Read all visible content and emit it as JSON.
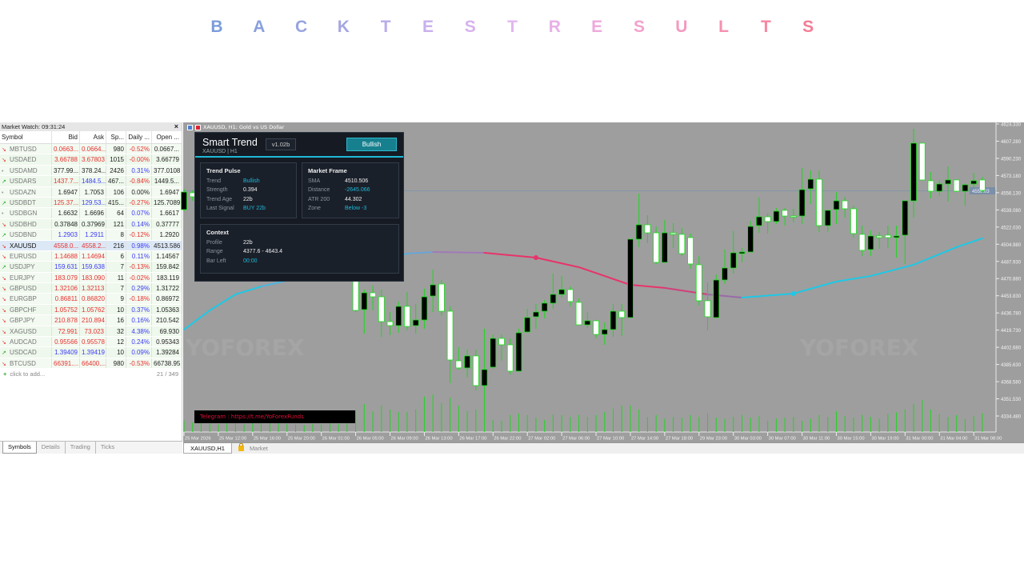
{
  "banner": {
    "letters": [
      "B",
      "A",
      "C",
      "K",
      "T",
      "E",
      "S",
      "T",
      "R",
      "E",
      "S",
      "U",
      "L",
      "T",
      "S"
    ],
    "colors": [
      "#7b9cda",
      "#8aa0dc",
      "#98a4e0",
      "#a6a6e2",
      "#b8acea",
      "#c8b0ec",
      "#d6b2ee",
      "#e2b6f0",
      "#e6b0e6",
      "#eeaadc",
      "#f2a2cc",
      "#f49ac0",
      "#f690b0",
      "#f686a2",
      "#f47c94"
    ]
  },
  "market_watch": {
    "title": "Market Watch: 09:31:24",
    "close": "×",
    "columns": [
      "Symbol",
      "Bid",
      "Ask",
      "Sp...",
      "Daily ...",
      "Open ..."
    ],
    "rows": [
      {
        "dir": "down",
        "symbol": "MBTUSD",
        "bid": "0.0663...",
        "ask": "0.0664...",
        "spread": "980",
        "daily": "-0.52%",
        "open": "0.0667...",
        "bid_c": "down",
        "ask_c": "down",
        "daily_c": "down"
      },
      {
        "dir": "down",
        "symbol": "USDAED",
        "bid": "3.66788",
        "ask": "3.67803",
        "spread": "1015",
        "daily": "-0.00%",
        "open": "3.66779",
        "bid_c": "down",
        "ask_c": "down",
        "daily_c": "down"
      },
      {
        "dir": "flat",
        "symbol": "USDAMD",
        "bid": "377.99...",
        "ask": "378.24...",
        "spread": "2426",
        "daily": "0.31%",
        "open": "377.0108",
        "bid_c": "flat",
        "ask_c": "flat",
        "daily_c": "up"
      },
      {
        "dir": "up",
        "symbol": "USDARS",
        "bid": "1437.7...",
        "ask": "1484.5...",
        "spread": "467...",
        "daily": "-0.84%",
        "open": "1449.5...",
        "bid_c": "down",
        "ask_c": "up",
        "daily_c": "down"
      },
      {
        "dir": "flat",
        "symbol": "USDAZN",
        "bid": "1.6947",
        "ask": "1.7053",
        "spread": "106",
        "daily": "0.00%",
        "open": "1.6947",
        "bid_c": "flat",
        "ask_c": "flat",
        "daily_c": "flat"
      },
      {
        "dir": "up",
        "symbol": "USDBDT",
        "bid": "125.37...",
        "ask": "129.53...",
        "spread": "415...",
        "daily": "-0.27%",
        "open": "125.7089",
        "bid_c": "down",
        "ask_c": "up",
        "daily_c": "down"
      },
      {
        "dir": "flat",
        "symbol": "USDBGN",
        "bid": "1.6632",
        "ask": "1.6696",
        "spread": "64",
        "daily": "0.07%",
        "open": "1.6617",
        "bid_c": "flat",
        "ask_c": "flat",
        "daily_c": "up"
      },
      {
        "dir": "down",
        "symbol": "USDBHD",
        "bid": "0.37848",
        "ask": "0.37969",
        "spread": "121",
        "daily": "0.14%",
        "open": "0.37777",
        "bid_c": "flat",
        "ask_c": "flat",
        "daily_c": "up"
      },
      {
        "dir": "up",
        "symbol": "USDBND",
        "bid": "1.2903",
        "ask": "1.2911",
        "spread": "8",
        "daily": "-0.12%",
        "open": "1.2920",
        "bid_c": "up",
        "ask_c": "up",
        "daily_c": "down"
      },
      {
        "dir": "down",
        "symbol": "XAUUSD",
        "bid": "4558.0...",
        "ask": "4558.2...",
        "spread": "216",
        "daily": "0.98%",
        "open": "4513.586",
        "bid_c": "down",
        "ask_c": "down",
        "daily_c": "up",
        "selected": true
      },
      {
        "dir": "down",
        "symbol": "EURUSD",
        "bid": "1.14688",
        "ask": "1.14694",
        "spread": "6",
        "daily": "0.11%",
        "open": "1.14567",
        "bid_c": "down",
        "ask_c": "down",
        "daily_c": "up"
      },
      {
        "dir": "up",
        "symbol": "USDJPY",
        "bid": "159.631",
        "ask": "159.638",
        "spread": "7",
        "daily": "-0.13%",
        "open": "159.842",
        "bid_c": "up",
        "ask_c": "up",
        "daily_c": "down"
      },
      {
        "dir": "down",
        "symbol": "EURJPY",
        "bid": "183.079",
        "ask": "183.090",
        "spread": "11",
        "daily": "-0.02%",
        "open": "183.119",
        "bid_c": "down",
        "ask_c": "down",
        "daily_c": "down"
      },
      {
        "dir": "down",
        "symbol": "GBPUSD",
        "bid": "1.32106",
        "ask": "1.32113",
        "spread": "7",
        "daily": "0.29%",
        "open": "1.31722",
        "bid_c": "down",
        "ask_c": "down",
        "daily_c": "up"
      },
      {
        "dir": "down",
        "symbol": "EURGBP",
        "bid": "0.86811",
        "ask": "0.86820",
        "spread": "9",
        "daily": "-0.18%",
        "open": "0.86972",
        "bid_c": "down",
        "ask_c": "down",
        "daily_c": "down"
      },
      {
        "dir": "down",
        "symbol": "GBPCHF",
        "bid": "1.05752",
        "ask": "1.05762",
        "spread": "10",
        "daily": "0.37%",
        "open": "1.05363",
        "bid_c": "down",
        "ask_c": "down",
        "daily_c": "up"
      },
      {
        "dir": "down",
        "symbol": "GBPJPY",
        "bid": "210.878",
        "ask": "210.894",
        "spread": "16",
        "daily": "0.16%",
        "open": "210.542",
        "bid_c": "down",
        "ask_c": "down",
        "daily_c": "up"
      },
      {
        "dir": "down",
        "symbol": "XAGUSD",
        "bid": "72.991",
        "ask": "73.023",
        "spread": "32",
        "daily": "4.38%",
        "open": "69.930",
        "bid_c": "down",
        "ask_c": "down",
        "daily_c": "up"
      },
      {
        "dir": "down",
        "symbol": "AUDCAD",
        "bid": "0.95566",
        "ask": "0.95578",
        "spread": "12",
        "daily": "0.24%",
        "open": "0.95343",
        "bid_c": "down",
        "ask_c": "down",
        "daily_c": "up"
      },
      {
        "dir": "up",
        "symbol": "USDCAD",
        "bid": "1.39409",
        "ask": "1.39419",
        "spread": "10",
        "daily": "0.09%",
        "open": "1.39284",
        "bid_c": "up",
        "ask_c": "up",
        "daily_c": "up"
      },
      {
        "dir": "down",
        "symbol": "BTCUSD",
        "bid": "66391....",
        "ask": "66400....",
        "spread": "980",
        "daily": "-0.53%",
        "open": "66738.95",
        "bid_c": "down",
        "ask_c": "down",
        "daily_c": "down"
      }
    ],
    "add_label": "click to add...",
    "count": "21 / 349",
    "tabs": [
      "Symbols",
      "Details",
      "Trading",
      "Ticks"
    ]
  },
  "chart": {
    "title": "XAUUSD, H1:  Gold vs US Dollar",
    "watermark": "YOFOREX",
    "colors": {
      "bg": "#9e9e9e",
      "wick": "#22d422",
      "bull_body": "#000000",
      "bear_body": "#ffffff",
      "volume": "#22d422",
      "sma_bull": "#1ec8e6",
      "sma_bear": "#e8336a"
    },
    "price_ticks": [
      "4624.330",
      "4607.280",
      "4590.230",
      "4573.180",
      "4556.130",
      "4539.080",
      "4522.030",
      "4504.980",
      "4487.930",
      "4470.880",
      "4453.830",
      "4436.780",
      "4419.730",
      "4402.680",
      "4385.630",
      "4368.580",
      "4351.530",
      "4334.480"
    ],
    "price_range": [
      4334.48,
      4624.33
    ],
    "current_price": "4558.03",
    "time_labels": [
      "25 Mar 2026",
      "25 Mar 12:00",
      "25 Mar 16:00",
      "25 Mar 20:00",
      "26 Mar 01:00",
      "26 Mar 05:00",
      "26 Mar 09:00",
      "26 Mar 13:00",
      "26 Mar 17:00",
      "26 Mar 22:00",
      "27 Mar 02:00",
      "27 Mar 06:00",
      "27 Mar 10:00",
      "27 Mar 14:00",
      "27 Mar 18:00",
      "29 Mar 23:00",
      "30 Mar 03:00",
      "30 Mar 07:00",
      "30 Mar 11:00",
      "30 Mar 15:00",
      "30 Mar 19:00",
      "31 Mar 00:00",
      "31 Mar 04:00",
      "31 Mar 08:00"
    ],
    "candles_ohlc": [
      [
        4539.4,
        4560.0,
        4537.8,
        4556.8
      ],
      [
        4556.1,
        4558.4,
        4548.1,
        4552.1
      ],
      null,
      null,
      null,
      null,
      null,
      null,
      null,
      null,
      null,
      null,
      null,
      null,
      null,
      null,
      null,
      null,
      null,
      null,
      [
        4469.5,
        4477.4,
        4437.7,
        4439.3
      ],
      [
        4440.1,
        4460.0,
        4416.3,
        4456.8
      ],
      [
        4456.8,
        4463.9,
        4439.3,
        4452.8
      ],
      [
        4452.8,
        4460.0,
        4413.1,
        4428.2
      ],
      [
        4428.2,
        4437.7,
        4414.7,
        4424.2
      ],
      [
        4424.2,
        4448.1,
        4417.1,
        4443.3
      ],
      [
        4443.3,
        4457.6,
        4419.5,
        4423.4
      ],
      [
        4424.2,
        4445.7,
        4416.3,
        4429.8
      ],
      [
        4429.8,
        4460.8,
        4421.1,
        4452.8
      ],
      [
        4453.6,
        4479.8,
        4437.7,
        4464.7
      ],
      [
        4465.5,
        4469.5,
        4433.8,
        4438.5
      ],
      [
        4438.5,
        4443.3,
        4367.1,
        4390.1
      ],
      [
        4389.3,
        4402.8,
        4380.6,
        4382.2
      ],
      [
        4382.2,
        4400.4,
        4372.6,
        4394.1
      ],
      [
        4394.1,
        4400.4,
        4359.9,
        4364.7
      ],
      [
        4364.7,
        4421.1,
        4352.0,
        4380.6
      ],
      [
        4383.0,
        4415.5,
        4381.4,
        4411.5
      ],
      [
        4411.5,
        4415.5,
        4389.3,
        4405.2
      ],
      [
        4405.2,
        4411.5,
        4375.8,
        4379.0
      ],
      [
        4379.0,
        4421.1,
        4379.0,
        4417.1
      ],
      [
        4417.9,
        4440.9,
        4417.1,
        4432.2
      ],
      [
        4433.0,
        4445.7,
        4421.1,
        4437.7
      ],
      [
        4438.5,
        4449.7,
        4431.4,
        4446.5
      ],
      [
        4446.5,
        4475.9,
        4440.9,
        4455.2
      ],
      [
        4455.2,
        4473.5,
        4452.0,
        4460.0
      ],
      [
        4460.0,
        4463.1,
        4443.3,
        4448.1
      ],
      [
        4447.3,
        4451.2,
        4425.0,
        4425.0
      ],
      [
        4425.0,
        4437.7,
        4421.9,
        4429.0
      ],
      [
        4429.0,
        4429.8,
        4411.5,
        4415.5
      ],
      [
        4415.5,
        4427.4,
        4405.2,
        4420.3
      ],
      [
        4420.3,
        4445.7,
        4413.1,
        4438.5
      ],
      [
        4438.5,
        4445.7,
        4413.9,
        4432.2
      ],
      [
        4432.2,
        4510.0,
        4432.2,
        4510.0
      ],
      [
        4510.0,
        4555.3,
        4502.1,
        4524.3
      ],
      [
        4524.3,
        4533.8,
        4506.0,
        4516.3
      ],
      [
        4516.3,
        4522.7,
        4485.4,
        4487.0
      ],
      [
        4487.0,
        4529.1,
        4487.0,
        4516.3
      ],
      [
        4516.3,
        4525.9,
        4501.3,
        4514.8
      ],
      [
        4514.8,
        4521.1,
        4493.3,
        4495.7
      ],
      [
        4511.6,
        4515.6,
        4480.6,
        4485.4
      ],
      [
        4484.6,
        4493.3,
        4444.1,
        4448.9
      ],
      [
        4448.9,
        4467.1,
        4419.5,
        4433.0
      ],
      [
        4432.2,
        4475.1,
        4432.2,
        4469.5
      ],
      [
        4469.5,
        4499.7,
        4465.5,
        4481.4
      ],
      [
        4481.4,
        4517.9,
        4475.9,
        4496.5
      ],
      [
        4495.7,
        4501.3,
        4487.0,
        4497.3
      ],
      [
        4497.3,
        4528.3,
        4497.3,
        4522.7
      ],
      [
        4523.5,
        4551.3,
        4516.3,
        4532.2
      ],
      [
        4532.2,
        4535.4,
        4515.6,
        4527.5
      ],
      [
        4527.5,
        4541.0,
        4525.1,
        4537.8
      ],
      [
        4538.6,
        4541.0,
        4523.5,
        4533.0
      ],
      [
        4533.0,
        4540.2,
        4526.7,
        4532.2
      ],
      [
        4533.0,
        4580.7,
        4525.1,
        4559.2
      ],
      [
        4560.0,
        4578.3,
        4544.9,
        4569.5
      ],
      [
        4569.5,
        4578.3,
        4517.1,
        4523.5
      ],
      [
        4523.5,
        4539.4,
        4517.1,
        4538.6
      ],
      [
        4539.4,
        4556.8,
        4525.1,
        4548.1
      ],
      [
        4548.1,
        4552.1,
        4531.4,
        4540.2
      ],
      [
        4540.2,
        4543.3,
        4511.6,
        4515.6
      ],
      [
        4514.8,
        4523.5,
        4493.3,
        4498.9
      ],
      [
        4499.7,
        4518.7,
        4493.3,
        4513.2
      ],
      [
        4513.2,
        4517.1,
        4500.5,
        4511.6
      ],
      [
        4514.0,
        4523.5,
        4501.3,
        4511.6
      ],
      [
        4511.6,
        4523.5,
        4491.7,
        4513.2
      ],
      [
        4514.0,
        4548.1,
        4485.4,
        4548.1
      ],
      [
        4548.1,
        4619.6,
        4531.4,
        4605.3
      ],
      [
        4605.3,
        4605.3,
        4568.8,
        4568.8
      ],
      [
        4568.0,
        4576.7,
        4550.5,
        4557.6
      ],
      [
        4557.6,
        4568.8,
        4552.9,
        4564.8
      ],
      [
        4564.8,
        4582.2,
        4547.3,
        4568.8
      ],
      [
        4568.8,
        4568.8,
        4556.8,
        4557.6
      ],
      [
        4557.6,
        4565.6,
        4543.3,
        4564.0
      ],
      [
        4564.8,
        4575.9,
        4561.6,
        4568.0
      ],
      [
        4568.8,
        4571.9,
        4556.1,
        4558.4
      ]
    ],
    "volume_relative": [
      30,
      25,
      28,
      22,
      20,
      35,
      24,
      20,
      30,
      22,
      25,
      26,
      22,
      20,
      18,
      22,
      20,
      28,
      22,
      30,
      57,
      74,
      55,
      70,
      60,
      53,
      53,
      60,
      94,
      100,
      77,
      91,
      70,
      55,
      60,
      91,
      32,
      30,
      45,
      49,
      45,
      38,
      32,
      47,
      45,
      40,
      45,
      40,
      45,
      53,
      62,
      70,
      70,
      60,
      40,
      45,
      35,
      40,
      38,
      45,
      40,
      50,
      38,
      35,
      40,
      45,
      38,
      42,
      30,
      35,
      38,
      40,
      30,
      35,
      45,
      40,
      55,
      42,
      38,
      45,
      40,
      35,
      48,
      52,
      60,
      75,
      85,
      60,
      48,
      40,
      45,
      35,
      42,
      50
    ],
    "sma_points": [
      [
        0,
        4420.3,
        "#1ec8e6"
      ],
      [
        3,
        4439.3,
        "#1ec8e6"
      ],
      [
        6,
        4455.2,
        "#1ec8e6"
      ],
      [
        9,
        4463.1,
        "#1ec8e6"
      ],
      [
        26,
        4495.7,
        "#4fb4e0"
      ],
      [
        29,
        4497.3,
        "#6aa4d6"
      ],
      [
        35,
        4496.5,
        "#a07ab6"
      ],
      [
        41,
        4491.7,
        "#e8336a"
      ],
      [
        46,
        4482.2,
        "#e8336a"
      ],
      [
        52,
        4464.7,
        "#e8336a"
      ],
      [
        56,
        4461.6,
        "#e8336a"
      ],
      [
        61,
        4455.2,
        "#d0407a"
      ],
      [
        65,
        4452.0,
        "#9a6aa8"
      ],
      [
        71,
        4456.0,
        "#1ec8e6"
      ],
      [
        76,
        4467.9,
        "#1ec8e6"
      ],
      [
        80,
        4473.5,
        "#1ec8e6"
      ],
      [
        85,
        4484.6,
        "#1ec8e6"
      ],
      [
        90,
        4502.1,
        "#1ec8e6"
      ],
      [
        93,
        4510.8,
        "#1ec8e6"
      ]
    ],
    "sma_markers": [
      [
        41,
        4491.7,
        "#e8336a"
      ],
      [
        71,
        4456.0,
        "#1ec8e6"
      ]
    ]
  },
  "smart_trend": {
    "title": "Smart Trend",
    "subtitle": "XAUUSD | H1",
    "version": "v1.02b",
    "state_button": "Bullish",
    "trend_pulse": {
      "title": "Trend Pulse",
      "items": [
        {
          "k": "Trend",
          "v": "Bullish",
          "accent": true
        },
        {
          "k": "Strength",
          "v": "0.394"
        },
        {
          "k": "Trend Age",
          "v": "22b"
        },
        {
          "k": "Last Signal",
          "v": "BUY 22b",
          "accent": true
        }
      ]
    },
    "market_frame": {
      "title": "Market Frame",
      "items": [
        {
          "k": "SMA",
          "v": "4510.506"
        },
        {
          "k": "Distance",
          "v": "-2645.066",
          "accent": true
        },
        {
          "k": "ATR 200",
          "v": "44.302"
        },
        {
          "k": "Zone",
          "v": "Below -3",
          "accent": true
        }
      ]
    },
    "context": {
      "title": "Context",
      "items": [
        {
          "k": "Profile",
          "v": "22b"
        },
        {
          "k": "Range",
          "v": "4377.6 - 4643.4"
        },
        {
          "k": "Bar Left",
          "v": "00:00",
          "accent": true
        }
      ]
    }
  },
  "telegram": "Telegram :  https://t.me/YoForexFunds",
  "bottom_tabs": [
    "XAUUSD,H1",
    "Market"
  ]
}
